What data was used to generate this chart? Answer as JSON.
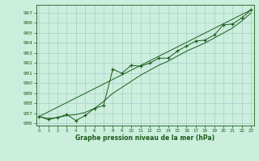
{
  "title": "Graphe pression niveau de la mer (hPa)",
  "bg_color": "#cceedd",
  "grid_color": "#aacccc",
  "line_color": "#1a5c1a",
  "marker_color": "#1a5c1a",
  "hours": [
    0,
    1,
    2,
    3,
    4,
    5,
    6,
    7,
    8,
    9,
    10,
    11,
    12,
    13,
    14,
    15,
    16,
    17,
    18,
    19,
    20,
    21,
    22,
    23
  ],
  "pressure": [
    986.7,
    986.4,
    986.6,
    986.9,
    986.3,
    986.8,
    987.5,
    987.8,
    991.4,
    991.0,
    991.8,
    991.7,
    992.0,
    992.5,
    992.5,
    993.2,
    993.7,
    994.2,
    994.3,
    994.8,
    995.8,
    995.9,
    996.5,
    997.3
  ],
  "pressure_smooth": [
    986.7,
    986.5,
    986.6,
    986.8,
    986.9,
    987.1,
    987.5,
    988.2,
    989.0,
    989.6,
    990.2,
    990.8,
    991.3,
    991.8,
    992.2,
    992.7,
    993.2,
    993.6,
    994.0,
    994.5,
    995.0,
    995.5,
    996.2,
    997.0
  ],
  "ylim": [
    985.8,
    997.8
  ],
  "yticks": [
    986,
    987,
    988,
    989,
    990,
    991,
    992,
    993,
    994,
    995,
    996,
    997
  ],
  "xlim": [
    -0.3,
    23.3
  ],
  "xticks": [
    0,
    1,
    2,
    3,
    4,
    5,
    6,
    7,
    8,
    9,
    10,
    11,
    12,
    13,
    14,
    15,
    16,
    17,
    18,
    19,
    20,
    21,
    22,
    23
  ]
}
